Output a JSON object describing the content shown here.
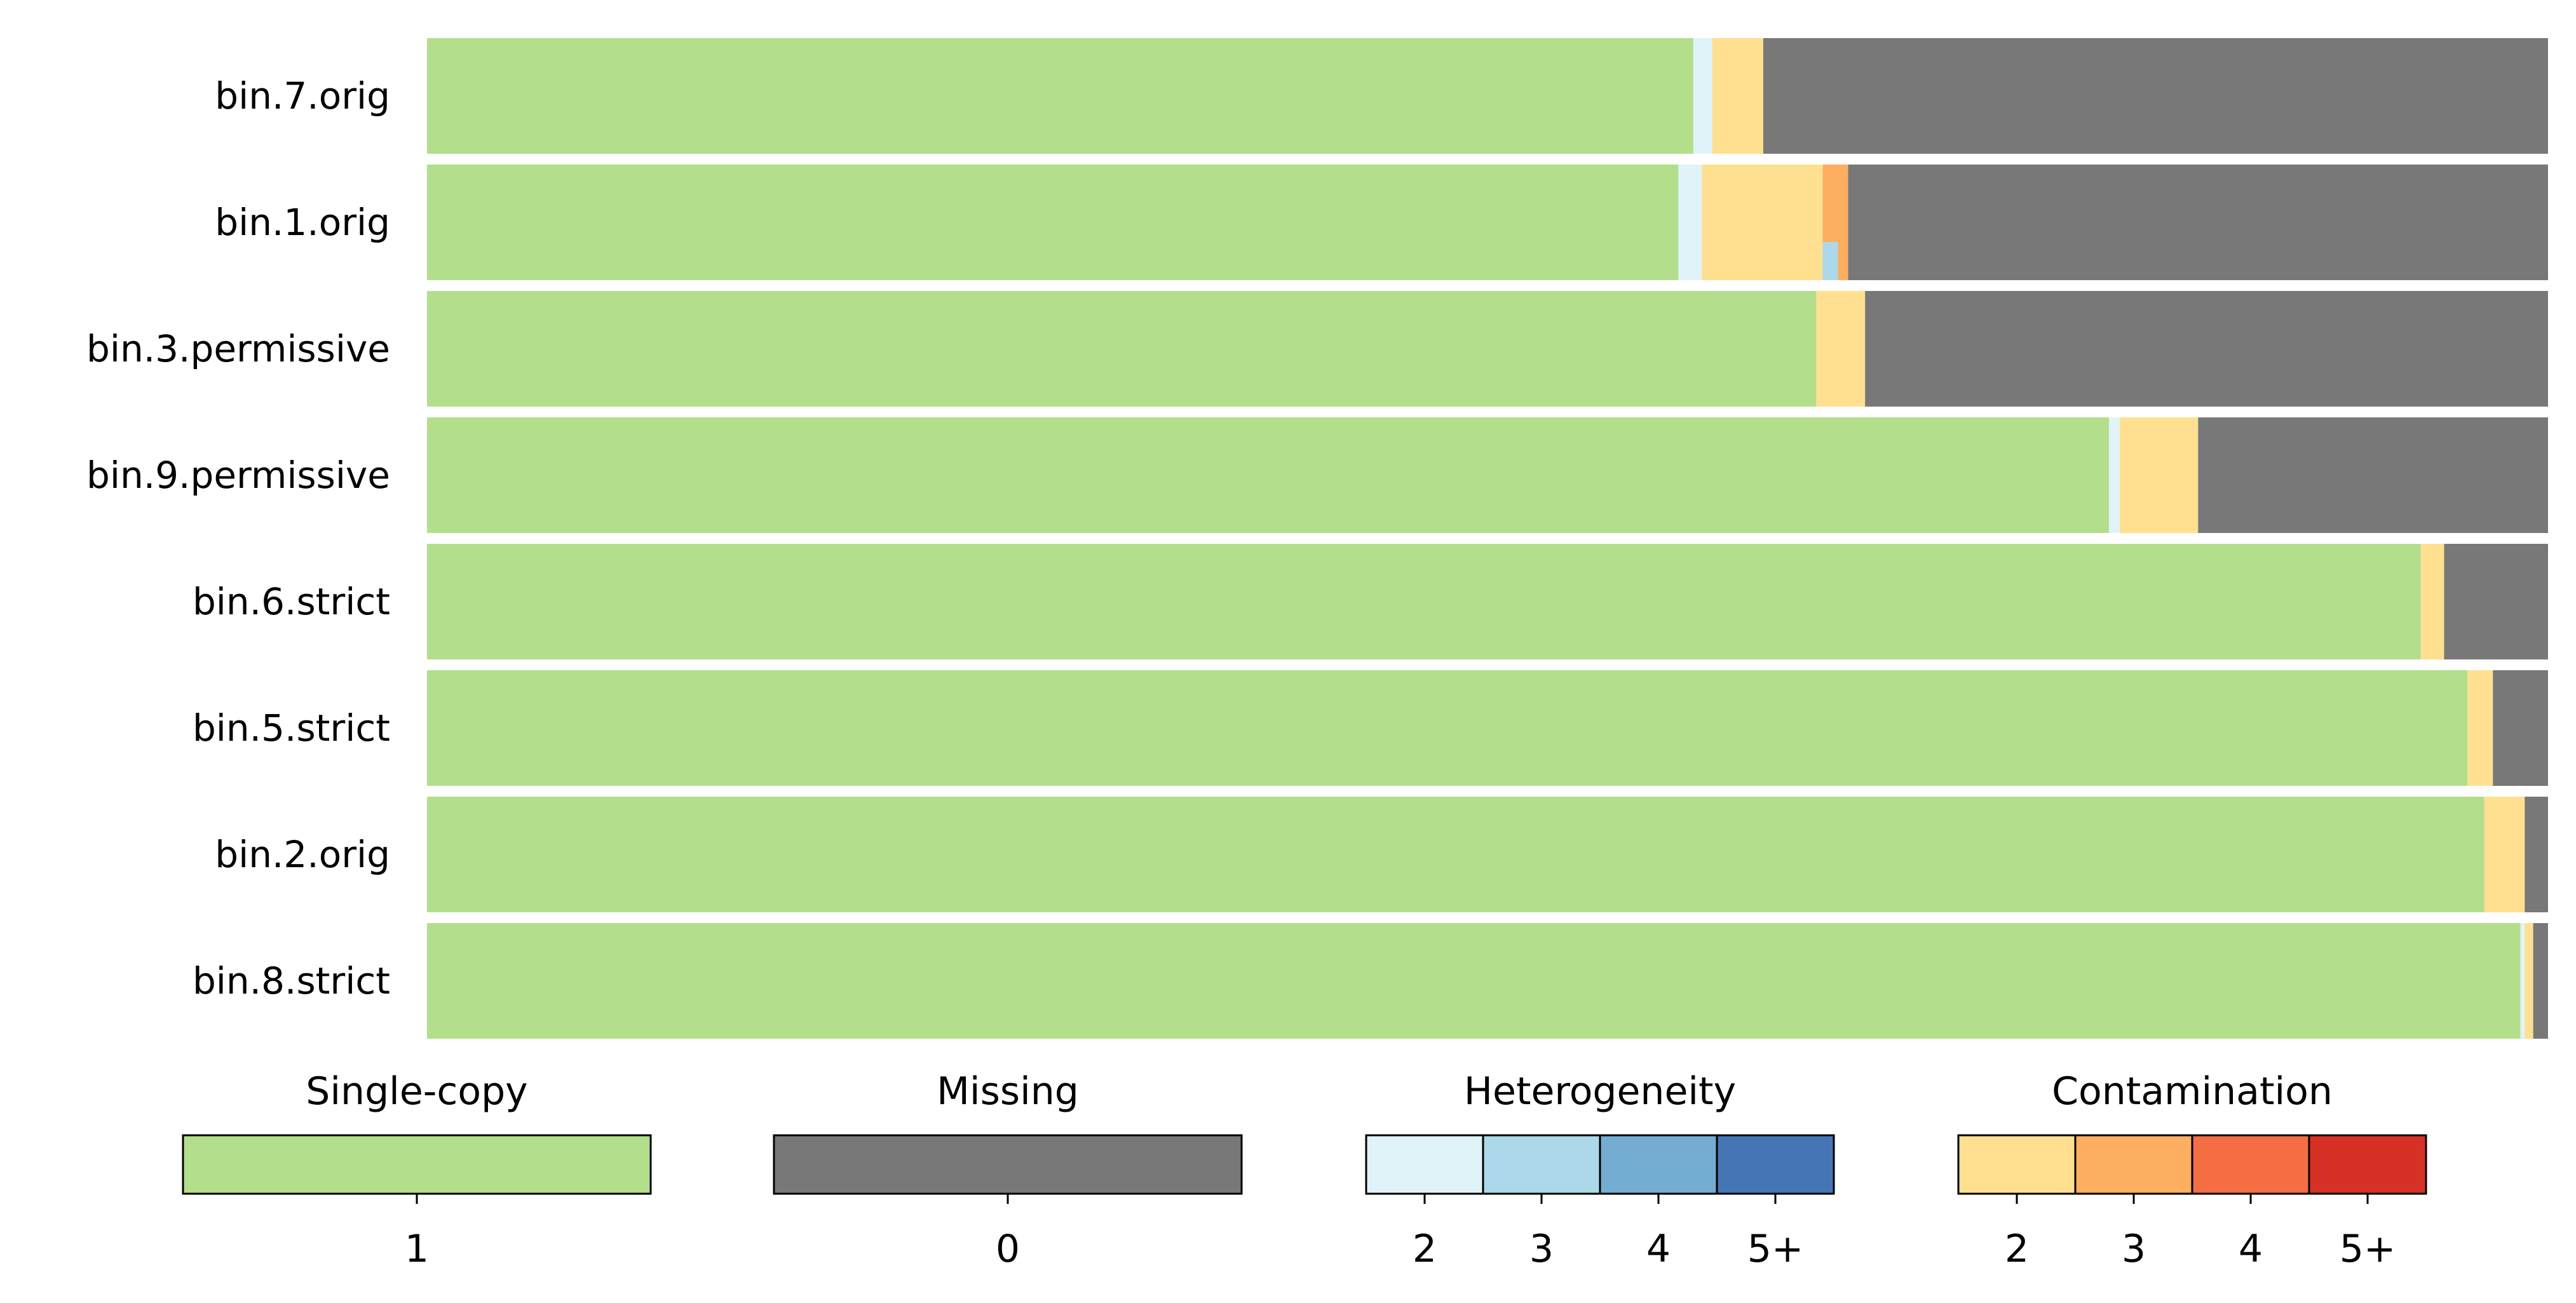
{
  "chart_data": {
    "type": "bar",
    "orientation": "horizontal",
    "stacked": true,
    "xlim": [
      0,
      1
    ],
    "grid": false,
    "categories": [
      "bin.7.orig",
      "bin.1.orig",
      "bin.3.permissive",
      "bin.9.permissive",
      "bin.6.strict",
      "bin.5.strict",
      "bin.2.orig",
      "bin.8.strict"
    ],
    "series": [
      {
        "key": "single_copy",
        "values": [
          0.597,
          0.59,
          0.655,
          0.793,
          0.94,
          0.962,
          0.97,
          0.987
        ]
      },
      {
        "key": "heterogeneity_2",
        "values": [
          0.009,
          0.011,
          0.0,
          0.005,
          0.0,
          0.0,
          0.0,
          0.002
        ]
      },
      {
        "key": "contamination_2",
        "values": [
          0.024,
          0.057,
          0.023,
          0.037,
          0.011,
          0.012,
          0.019,
          0.004
        ]
      },
      {
        "key": "contamination_3",
        "values": [
          0.0,
          0.012,
          0.0,
          0.0,
          0.0,
          0.0,
          0.0,
          0.0
        ]
      },
      {
        "key": "missing",
        "values": [
          0.37,
          0.33,
          0.322,
          0.165,
          0.049,
          0.026,
          0.011,
          0.007
        ]
      }
    ],
    "split_marks": [
      {
        "category": "bin.1.orig",
        "segment": "contamination_3",
        "lower_half": "heterogeneity_3",
        "fraction": 0.67
      }
    ],
    "legend": [
      {
        "title": "Single-copy",
        "colors": [
          "#b3df8c"
        ],
        "labels": [
          "1"
        ]
      },
      {
        "title": "Missing",
        "colors": [
          "#787878"
        ],
        "labels": [
          "0"
        ]
      },
      {
        "title": "Heterogeneity",
        "colors": [
          "#e0f3f8",
          "#abd9e9",
          "#74add1",
          "#4575b4"
        ],
        "labels": [
          "2",
          "3",
          "4",
          "5+"
        ]
      },
      {
        "title": "Contamination",
        "colors": [
          "#fee090",
          "#fdae61",
          "#f46d43",
          "#d73027"
        ],
        "labels": [
          "2",
          "3",
          "4",
          "5+"
        ]
      }
    ],
    "colors": {
      "single_copy": "#b3df8c",
      "missing": "#787878",
      "heterogeneity_2": "#e0f3f8",
      "heterogeneity_3": "#abd9e9",
      "heterogeneity_4": "#74add1",
      "heterogeneity_5": "#4575b4",
      "contamination_2": "#fee090",
      "contamination_3": "#fdae61",
      "contamination_4": "#f46d43",
      "contamination_5": "#d73027"
    }
  }
}
